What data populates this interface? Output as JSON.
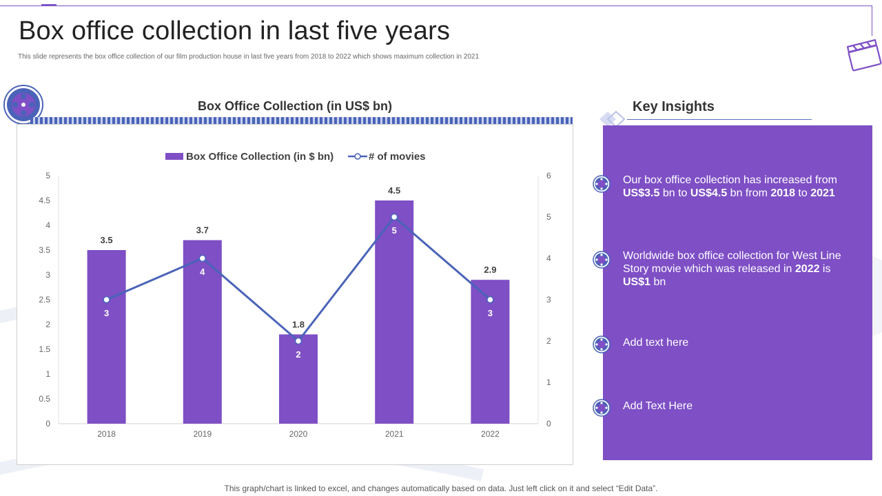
{
  "page": {
    "title": "Box office collection in last five years",
    "subtitle": "This slide represents the box office collection of our film production house in last five years from 2018 to 2022 which shows maximum collection in 2021",
    "footer": "This graph/chart is linked to excel,  and changes automatically based on data. Just left click on it and select “Edit Data”."
  },
  "chart_data": {
    "type": "bar",
    "title": "Box Office Collection (in US$ bn)",
    "categories": [
      "2018",
      "2019",
      "2020",
      "2021",
      "2022"
    ],
    "series": [
      {
        "name": "Box Office Collection (in $ bn)",
        "type": "bar",
        "axis": "left",
        "values": [
          3.5,
          3.7,
          1.8,
          4.5,
          2.9
        ],
        "color": "#7e4fc5"
      },
      {
        "name": "# of movies",
        "type": "line",
        "axis": "right",
        "values": [
          3,
          4,
          2,
          5,
          3
        ],
        "color": "#4a63b8"
      }
    ],
    "ylim": [
      0,
      5
    ],
    "y_ticks": [
      "0",
      "0.5",
      "1",
      "1.5",
      "2",
      "2.5",
      "3",
      "3.5",
      "4",
      "4.5",
      "5"
    ],
    "y2lim": [
      0,
      6
    ],
    "y2_ticks": [
      "0",
      "1",
      "2",
      "3",
      "4",
      "5",
      "6"
    ],
    "legend_position": "top",
    "grid": false
  },
  "insights": {
    "title": "Key Insights",
    "items": [
      {
        "segments": [
          {
            "text": "Our box office collection has increased from ",
            "bold": false
          },
          {
            "text": "US$3.5",
            "bold": true
          },
          {
            "text": " bn to ",
            "bold": false
          },
          {
            "text": "US$4.5",
            "bold": true
          },
          {
            "text": " bn from ",
            "bold": false
          },
          {
            "text": "2018",
            "bold": true
          },
          {
            "text": " to ",
            "bold": false
          },
          {
            "text": "2021",
            "bold": true
          }
        ]
      },
      {
        "segments": [
          {
            "text": "Worldwide box office collection for West Line Story movie which was released in ",
            "bold": false
          },
          {
            "text": "2022",
            "bold": true
          },
          {
            "text": " is ",
            "bold": false
          },
          {
            "text": "US$1",
            "bold": true
          },
          {
            "text": " bn",
            "bold": false
          }
        ]
      },
      {
        "segments": [
          {
            "text": "Add text here",
            "bold": false
          }
        ]
      },
      {
        "segments": [
          {
            "text": "Add Text Here",
            "bold": false
          }
        ]
      }
    ]
  },
  "icons": {
    "top_right": "clapperboard-icon",
    "chart_badge": "film-reel-icon",
    "insight_bullet": "film-reel-bullet-icon",
    "insights_header": "diamond-icon"
  }
}
